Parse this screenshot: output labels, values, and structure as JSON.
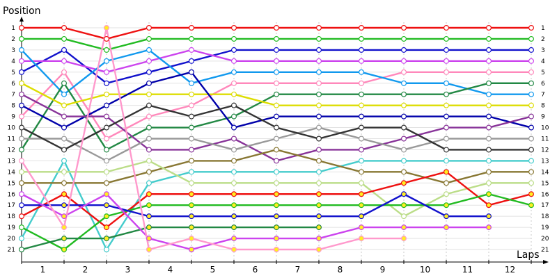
{
  "chart_data": {
    "type": "line",
    "ylabel": "Position",
    "xlabel": "Laps",
    "x_ticks": [
      0,
      1,
      2,
      3,
      4,
      5,
      6,
      7,
      8,
      9,
      10,
      11,
      12
    ],
    "lap_labels": [
      "1",
      "2",
      "3",
      "4",
      "5",
      "6",
      "7",
      "8",
      "9",
      "10",
      "11",
      "12"
    ],
    "position_labels": [
      "1",
      "2",
      "3",
      "4",
      "5",
      "6",
      "7",
      "8",
      "9",
      "10",
      "11",
      "12",
      "13",
      "14",
      "15",
      "16",
      "17",
      "18",
      "19",
      "20",
      "21"
    ],
    "ylim": [
      1,
      21
    ],
    "ydir": "reversed",
    "grid": true,
    "series": [
      {
        "color": "#ee1111",
        "values": [
          1,
          1,
          2,
          1,
          1,
          1,
          1,
          1,
          1,
          1,
          1,
          1,
          1
        ]
      },
      {
        "color": "#22bb22",
        "values": [
          2,
          2,
          3,
          2,
          2,
          2,
          2,
          2,
          2,
          2,
          2,
          2,
          2
        ]
      },
      {
        "color": "#1111cc",
        "values": [
          5,
          3,
          6,
          5,
          4,
          3,
          3,
          3,
          3,
          3,
          3,
          3,
          3
        ]
      },
      {
        "color": "#cc44ee",
        "values": [
          4,
          4,
          5,
          4,
          3,
          4,
          4,
          4,
          4,
          4,
          4,
          4,
          4
        ]
      },
      {
        "color": "#ff88bb",
        "values": [
          9,
          5,
          11,
          9,
          8,
          6,
          6,
          6,
          6,
          5,
          5,
          5,
          5
        ]
      },
      {
        "color": "#1199ee",
        "values": [
          3,
          7,
          4,
          3,
          6,
          5,
          5,
          5,
          5,
          6,
          6,
          7,
          7
        ]
      },
      {
        "color": "#228844",
        "values": [
          12,
          6,
          12,
          10,
          10,
          9,
          7,
          7,
          7,
          7,
          7,
          6,
          6
        ]
      },
      {
        "color": "#dddd00",
        "values": [
          6,
          8,
          7,
          7,
          7,
          7,
          8,
          8,
          8,
          8,
          8,
          8,
          8
        ]
      },
      {
        "color": "#0000aa",
        "values": [
          8,
          10,
          8,
          6,
          5,
          10,
          9,
          9,
          9,
          9,
          9,
          9,
          10
        ]
      },
      {
        "color": "#883399",
        "values": [
          7,
          9,
          9,
          12,
          12,
          11,
          13,
          12,
          12,
          11,
          10,
          10,
          9
        ]
      },
      {
        "color": "#999999",
        "values": [
          11,
          11,
          13,
          11,
          11,
          12,
          11,
          10,
          11,
          12,
          11,
          11,
          11
        ]
      },
      {
        "color": "#333333",
        "values": [
          10,
          12,
          10,
          8,
          9,
          8,
          10,
          11,
          10,
          10,
          12,
          12,
          12
        ]
      },
      {
        "color": "#44cccc",
        "values": [
          20,
          13,
          21,
          15,
          14,
          14,
          14,
          14,
          13,
          13,
          13,
          13,
          13
        ]
      },
      {
        "color": "#887733",
        "values": [
          15,
          15,
          15,
          14,
          13,
          13,
          12,
          13,
          14,
          14,
          15,
          14,
          14
        ]
      },
      {
        "color": "#bbdd88",
        "values": [
          14,
          14,
          14,
          13,
          15,
          15,
          15,
          15,
          15,
          18,
          16,
          15,
          15
        ]
      },
      {
        "color": "#ee1111",
        "values": [
          18,
          16,
          19,
          16,
          16,
          16,
          16,
          16,
          16,
          15,
          14,
          17,
          16
        ]
      },
      {
        "color": "#22bb22",
        "values": [
          19,
          21,
          18,
          17,
          17,
          17,
          17,
          17,
          17,
          17,
          17,
          16,
          17
        ]
      },
      {
        "color": "#1111cc",
        "values": [
          17,
          17,
          17,
          18,
          18,
          18,
          18,
          18,
          18,
          16,
          18,
          18
        ]
      },
      {
        "color": "#228844",
        "values": [
          21,
          20,
          20,
          19,
          19,
          19,
          19,
          19
        ]
      },
      {
        "color": "#cc44ee",
        "values": [
          16,
          18,
          16,
          20,
          21,
          20,
          20,
          20,
          19,
          19,
          19,
          19
        ]
      },
      {
        "color": "#ff99cc",
        "values": [
          13,
          19,
          1,
          21,
          20,
          21,
          21,
          21,
          20,
          20
        ]
      }
    ]
  }
}
